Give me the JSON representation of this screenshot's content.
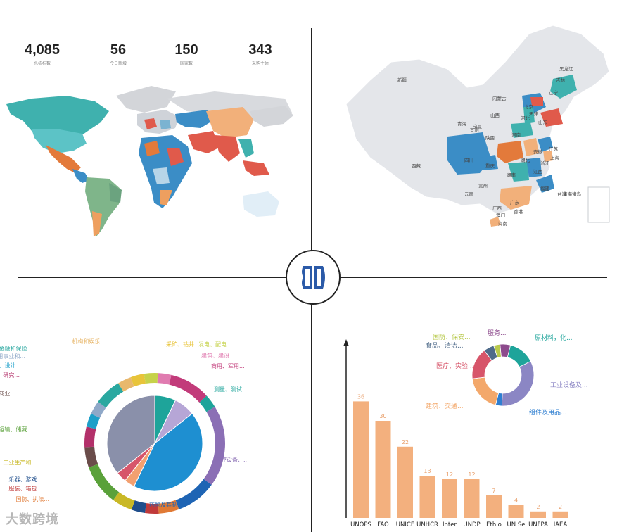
{
  "stats": [
    {
      "value": "4,085",
      "label": "总招标数"
    },
    {
      "value": "56",
      "label": "今日新增"
    },
    {
      "value": "150",
      "label": "国家数"
    },
    {
      "value": "343",
      "label": "采购主体"
    }
  ],
  "china_map": {
    "provinces": [
      "黑龙江",
      "吉林",
      "辽宁",
      "内蒙古",
      "北京",
      "天津",
      "河北",
      "山西",
      "山东",
      "宁夏",
      "青海",
      "甘肃",
      "陕西",
      "河南",
      "新疆",
      "西藏",
      "四川",
      "重庆",
      "湖北",
      "安徽",
      "江苏",
      "上海",
      "浙江",
      "湖南",
      "江西",
      "贵州",
      "云南",
      "福建",
      "台湾",
      "广西",
      "广东",
      "香港",
      "澳门",
      "海南",
      "南海诸岛"
    ]
  },
  "donut_chart_left": {
    "labels": [
      "采矿、钻井...",
      "发电、配电...",
      "建筑、建设...",
      "商用、军用...",
      "测量、测试...",
      "医疗设备、...",
      "药物及其制...",
      "国防、执法...",
      "服装、箱包...",
      "乐器、游戏...",
      "工业生产和...",
      "运输、储藏...",
      "管理和商业...",
      "工程、研究...",
      "编辑、设计...",
      "公用事业和...",
      "金融和保险...",
      "机构和娱乐..."
    ],
    "colors": [
      "#e8c43a",
      "#c6d24a",
      "#e07bb0",
      "#c23b7a",
      "#1ea49a",
      "#8b6fb5",
      "#1e64b4",
      "#e07a35",
      "#c03a3a",
      "#1f4e8c",
      "#c9b826",
      "#5aa13a",
      "#6a4c4a",
      "#b3306a",
      "#1d9fc9",
      "#8fa8c8",
      "#2aa8a0",
      "#e8b86d"
    ]
  },
  "donut_chart_right": {
    "labels": [
      "服务...",
      "原材料，化...",
      "工业设备及...",
      "组件及用品...",
      "建筑、交通...",
      "医疗、实验...",
      "食品、清洁...",
      "国防、保安..."
    ],
    "colors": [
      "#8c4a8c",
      "#1ea49a",
      "#8b86c4",
      "#2f7fd1",
      "#f3a86b",
      "#d7556a",
      "#4f6b8a",
      "#b8c94c"
    ]
  },
  "chart_data": {
    "type": "bar",
    "categories": [
      "UNOPS",
      "FAO",
      "UNICE",
      "UNHCR",
      "Inter",
      "UNDP",
      "Ethio",
      "UN Se",
      "UNFPA",
      "IAEA"
    ],
    "values": [
      36,
      30,
      22,
      13,
      12,
      12,
      7,
      4,
      2,
      2
    ],
    "xlabel": "",
    "ylabel": "",
    "ylim": [
      0,
      40
    ]
  },
  "watermark": "大数跨境"
}
